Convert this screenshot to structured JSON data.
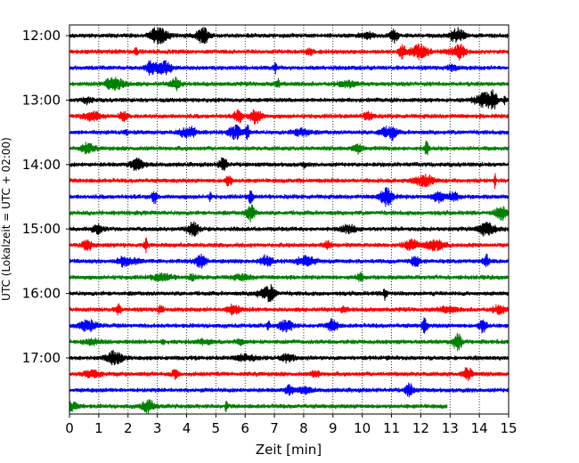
{
  "chart_data": {
    "type": "line",
    "title": "",
    "xlabel": "Zeit  [min]",
    "ylabel": "UTC (Lokalzeit = UTC + 02:00)",
    "xlim": [
      0,
      15
    ],
    "x_ticks": [
      "0",
      "1",
      "2",
      "3",
      "4",
      "5",
      "6",
      "7",
      "8",
      "9",
      "10",
      "11",
      "12",
      "13",
      "14",
      "15"
    ],
    "y_ticks": [
      "12:00",
      "13:00",
      "14:00",
      "15:00",
      "16:00",
      "17:00"
    ],
    "grid": "vertical dotted",
    "trace_interval_minutes": 15,
    "colors": [
      "#000000",
      "#ff0000",
      "#0000ff",
      "#008000"
    ],
    "traces": [
      {
        "start": "12:00",
        "color": "#000000",
        "length_min": 15
      },
      {
        "start": "12:15",
        "color": "#ff0000",
        "length_min": 15
      },
      {
        "start": "12:30",
        "color": "#0000ff",
        "length_min": 15
      },
      {
        "start": "12:45",
        "color": "#008000",
        "length_min": 15
      },
      {
        "start": "13:00",
        "color": "#000000",
        "length_min": 15
      },
      {
        "start": "13:15",
        "color": "#ff0000",
        "length_min": 15
      },
      {
        "start": "13:30",
        "color": "#0000ff",
        "length_min": 15
      },
      {
        "start": "13:45",
        "color": "#008000",
        "length_min": 15
      },
      {
        "start": "14:00",
        "color": "#000000",
        "length_min": 15
      },
      {
        "start": "14:15",
        "color": "#ff0000",
        "length_min": 15
      },
      {
        "start": "14:30",
        "color": "#0000ff",
        "length_min": 15
      },
      {
        "start": "14:45",
        "color": "#008000",
        "length_min": 15
      },
      {
        "start": "15:00",
        "color": "#000000",
        "length_min": 15
      },
      {
        "start": "15:15",
        "color": "#ff0000",
        "length_min": 15
      },
      {
        "start": "15:30",
        "color": "#0000ff",
        "length_min": 15
      },
      {
        "start": "15:45",
        "color": "#008000",
        "length_min": 15
      },
      {
        "start": "16:00",
        "color": "#000000",
        "length_min": 15
      },
      {
        "start": "16:15",
        "color": "#ff0000",
        "length_min": 15
      },
      {
        "start": "16:30",
        "color": "#0000ff",
        "length_min": 15
      },
      {
        "start": "16:45",
        "color": "#008000",
        "length_min": 15
      },
      {
        "start": "17:00",
        "color": "#000000",
        "length_min": 15
      },
      {
        "start": "17:15",
        "color": "#ff0000",
        "length_min": 15
      },
      {
        "start": "17:30",
        "color": "#0000ff",
        "length_min": 15
      },
      {
        "start": "17:45",
        "color": "#008000",
        "length_min": 12.9
      }
    ]
  }
}
